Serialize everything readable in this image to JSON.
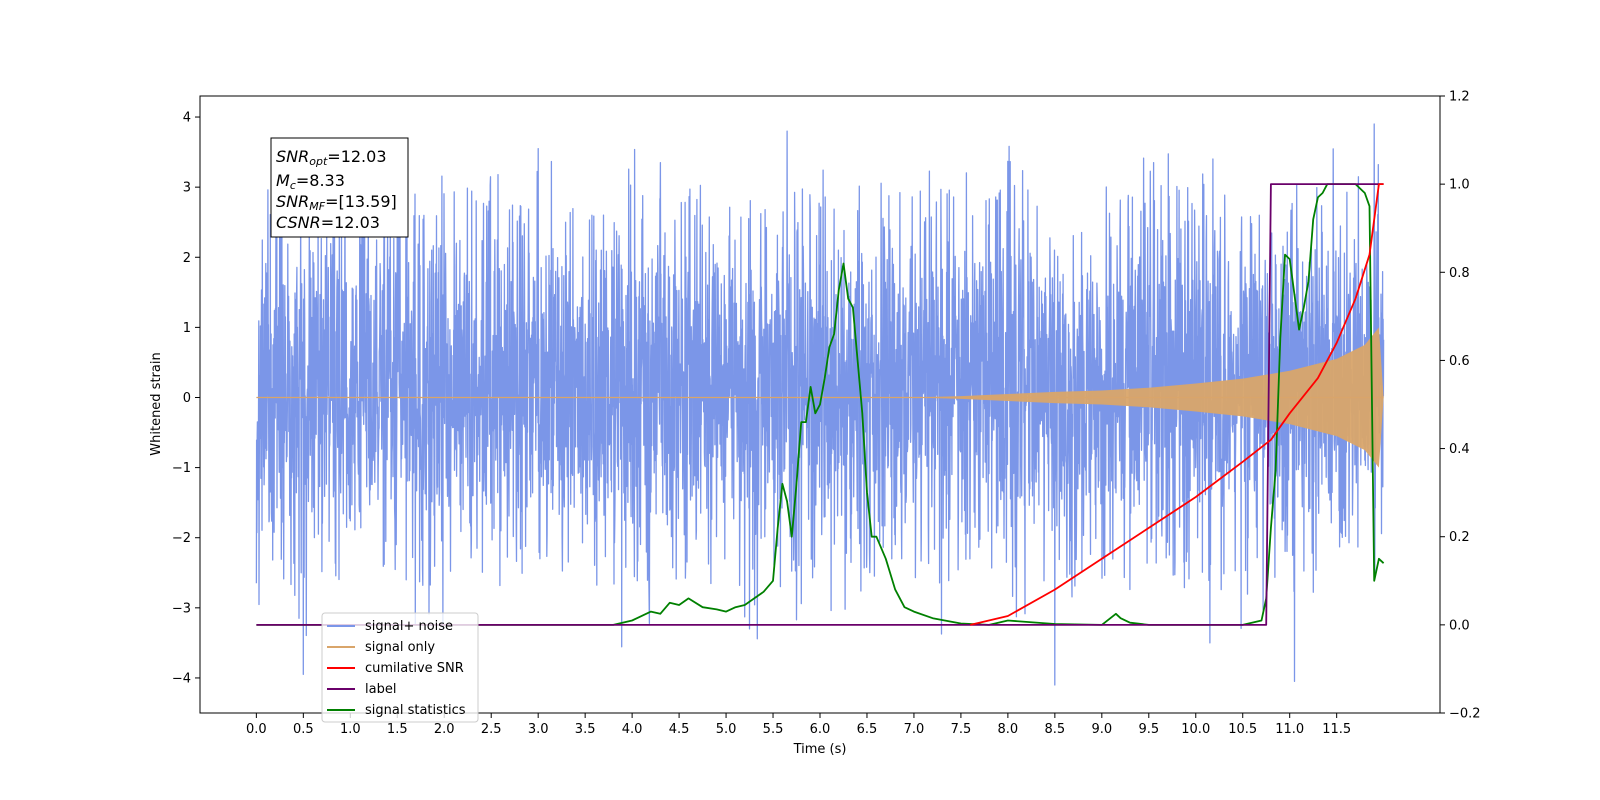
{
  "chart_data": {
    "type": "line",
    "xlabel": "Time (s)",
    "ylabel": "Whitened strain",
    "xlim": [
      -0.6,
      12.6
    ],
    "ylim": [
      -4.5,
      4.3
    ],
    "y2lim": [
      -0.2,
      1.2
    ],
    "xticks": [
      0.0,
      0.5,
      1.0,
      1.5,
      2.0,
      2.5,
      3.0,
      3.5,
      4.0,
      4.5,
      5.0,
      5.5,
      6.0,
      6.5,
      7.0,
      7.5,
      8.0,
      8.5,
      9.0,
      9.5,
      10.0,
      10.5,
      11.0,
      11.5
    ],
    "xtick_labels": [
      "0.0",
      "0.5",
      "1.0",
      "1.5",
      "2.0",
      "2.5",
      "3.0",
      "3.5",
      "4.0",
      "4.5",
      "5.0",
      "5.5",
      "6.0",
      "6.5",
      "7.0",
      "7.5",
      "8.0",
      "8.5",
      "9.0",
      "9.5",
      "10.0",
      "10.5",
      "11.0",
      "11.5"
    ],
    "yticks": [
      -4,
      -3,
      -2,
      -1,
      0,
      1,
      2,
      3,
      4
    ],
    "ytick_labels": [
      "−4",
      "−3",
      "−2",
      "−1",
      "0",
      "1",
      "2",
      "3",
      "4"
    ],
    "y2ticks": [
      -0.2,
      0.0,
      0.2,
      0.4,
      0.6,
      0.8,
      1.0,
      1.2
    ],
    "y2tick_labels": [
      "−0.2",
      "0.0",
      "0.2",
      "0.4",
      "0.6",
      "0.8",
      "1.0",
      "1.2"
    ],
    "grid": false,
    "legend_position": "bottom-left",
    "annotation": {
      "snr_opt": {
        "base": "SNR",
        "sub": "opt",
        "value": "=12.03"
      },
      "mc": {
        "base": "M",
        "sub": "c",
        "value": "=8.33"
      },
      "snr_mf": {
        "base": "SNR",
        "sub": "MF",
        "value": "=[13.59]"
      },
      "csnr": {
        "base": "CSNR",
        "sub": "",
        "value": "=12.03"
      }
    },
    "series": [
      {
        "name": "signal+ noise",
        "axis": "left",
        "color": "#7b96e8",
        "noise": {
          "x_start": 0.0,
          "x_end": 12.0,
          "core_band": [
            -1.6,
            1.9
          ],
          "typical_extent": [
            -2.7,
            3.0
          ],
          "spike_peaks": [
            [
              0.5,
              -3.95
            ],
            [
              1.5,
              3.0
            ],
            [
              3.0,
              3.55
            ],
            [
              4.3,
              3.35
            ],
            [
              5.25,
              -3.3
            ],
            [
              5.65,
              3.8
            ],
            [
              8.5,
              -4.1
            ],
            [
              9.55,
              3.35
            ],
            [
              10.15,
              -3.5
            ],
            [
              11.05,
              -4.05
            ],
            [
              11.9,
              3.9
            ]
          ]
        }
      },
      {
        "name": "signal only",
        "axis": "left",
        "color": "#d9a56a",
        "envelope": {
          "x": [
            0.0,
            7.0,
            7.5,
            8.0,
            8.5,
            9.0,
            9.5,
            10.0,
            10.5,
            11.0,
            11.5,
            11.8,
            11.95,
            12.0
          ],
          "amplitude": [
            0.0,
            0.0,
            0.02,
            0.05,
            0.08,
            0.1,
            0.14,
            0.2,
            0.27,
            0.38,
            0.55,
            0.75,
            1.0,
            0.0
          ]
        }
      },
      {
        "name": "cumilative SNR",
        "axis": "right",
        "color": "#ff0000",
        "x": [
          7.6,
          8.0,
          8.5,
          9.0,
          9.5,
          10.0,
          10.5,
          10.8,
          11.0,
          11.3,
          11.5,
          11.7,
          11.85,
          11.95,
          12.0
        ],
        "y": [
          0.0,
          0.02,
          0.08,
          0.15,
          0.22,
          0.29,
          0.37,
          0.42,
          0.48,
          0.56,
          0.64,
          0.74,
          0.84,
          1.0,
          1.0
        ]
      },
      {
        "name": "label",
        "axis": "right",
        "color": "#6a006a",
        "x": [
          0.0,
          10.75,
          10.8,
          12.0
        ],
        "y": [
          0.0,
          0.0,
          1.0,
          1.0
        ]
      },
      {
        "name": "signal statistics",
        "axis": "right",
        "color": "#008000",
        "x": [
          0.0,
          3.5,
          3.8,
          4.0,
          4.2,
          4.3,
          4.4,
          4.5,
          4.6,
          4.75,
          4.9,
          5.0,
          5.1,
          5.2,
          5.3,
          5.4,
          5.5,
          5.55,
          5.6,
          5.65,
          5.7,
          5.75,
          5.8,
          5.85,
          5.9,
          5.95,
          6.0,
          6.05,
          6.1,
          6.15,
          6.2,
          6.25,
          6.3,
          6.35,
          6.4,
          6.45,
          6.5,
          6.55,
          6.6,
          6.7,
          6.8,
          6.9,
          7.0,
          7.2,
          7.5,
          7.8,
          8.0,
          8.5,
          9.0,
          9.15,
          9.2,
          9.3,
          9.5,
          10.0,
          10.5,
          10.7,
          10.75,
          10.8,
          10.85,
          10.9,
          10.95,
          11.0,
          11.05,
          11.1,
          11.15,
          11.2,
          11.25,
          11.3,
          11.35,
          11.4,
          11.5,
          11.6,
          11.7,
          11.8,
          11.85,
          11.9,
          11.95,
          12.0
        ],
        "y": [
          0.0,
          0.0,
          0.0,
          0.01,
          0.03,
          0.025,
          0.05,
          0.045,
          0.06,
          0.04,
          0.035,
          0.03,
          0.04,
          0.045,
          0.06,
          0.075,
          0.1,
          0.22,
          0.32,
          0.28,
          0.2,
          0.32,
          0.46,
          0.46,
          0.54,
          0.48,
          0.5,
          0.56,
          0.63,
          0.66,
          0.76,
          0.82,
          0.74,
          0.72,
          0.6,
          0.48,
          0.3,
          0.2,
          0.2,
          0.15,
          0.08,
          0.04,
          0.03,
          0.015,
          0.003,
          0.0,
          0.01,
          0.002,
          0.0,
          0.025,
          0.015,
          0.005,
          0.0,
          0.0,
          0.0,
          0.01,
          0.06,
          0.22,
          0.35,
          0.65,
          0.84,
          0.83,
          0.75,
          0.67,
          0.72,
          0.78,
          0.92,
          0.97,
          0.98,
          1.0,
          1.0,
          1.0,
          1.0,
          0.98,
          0.95,
          0.1,
          0.15,
          0.14
        ]
      }
    ]
  }
}
